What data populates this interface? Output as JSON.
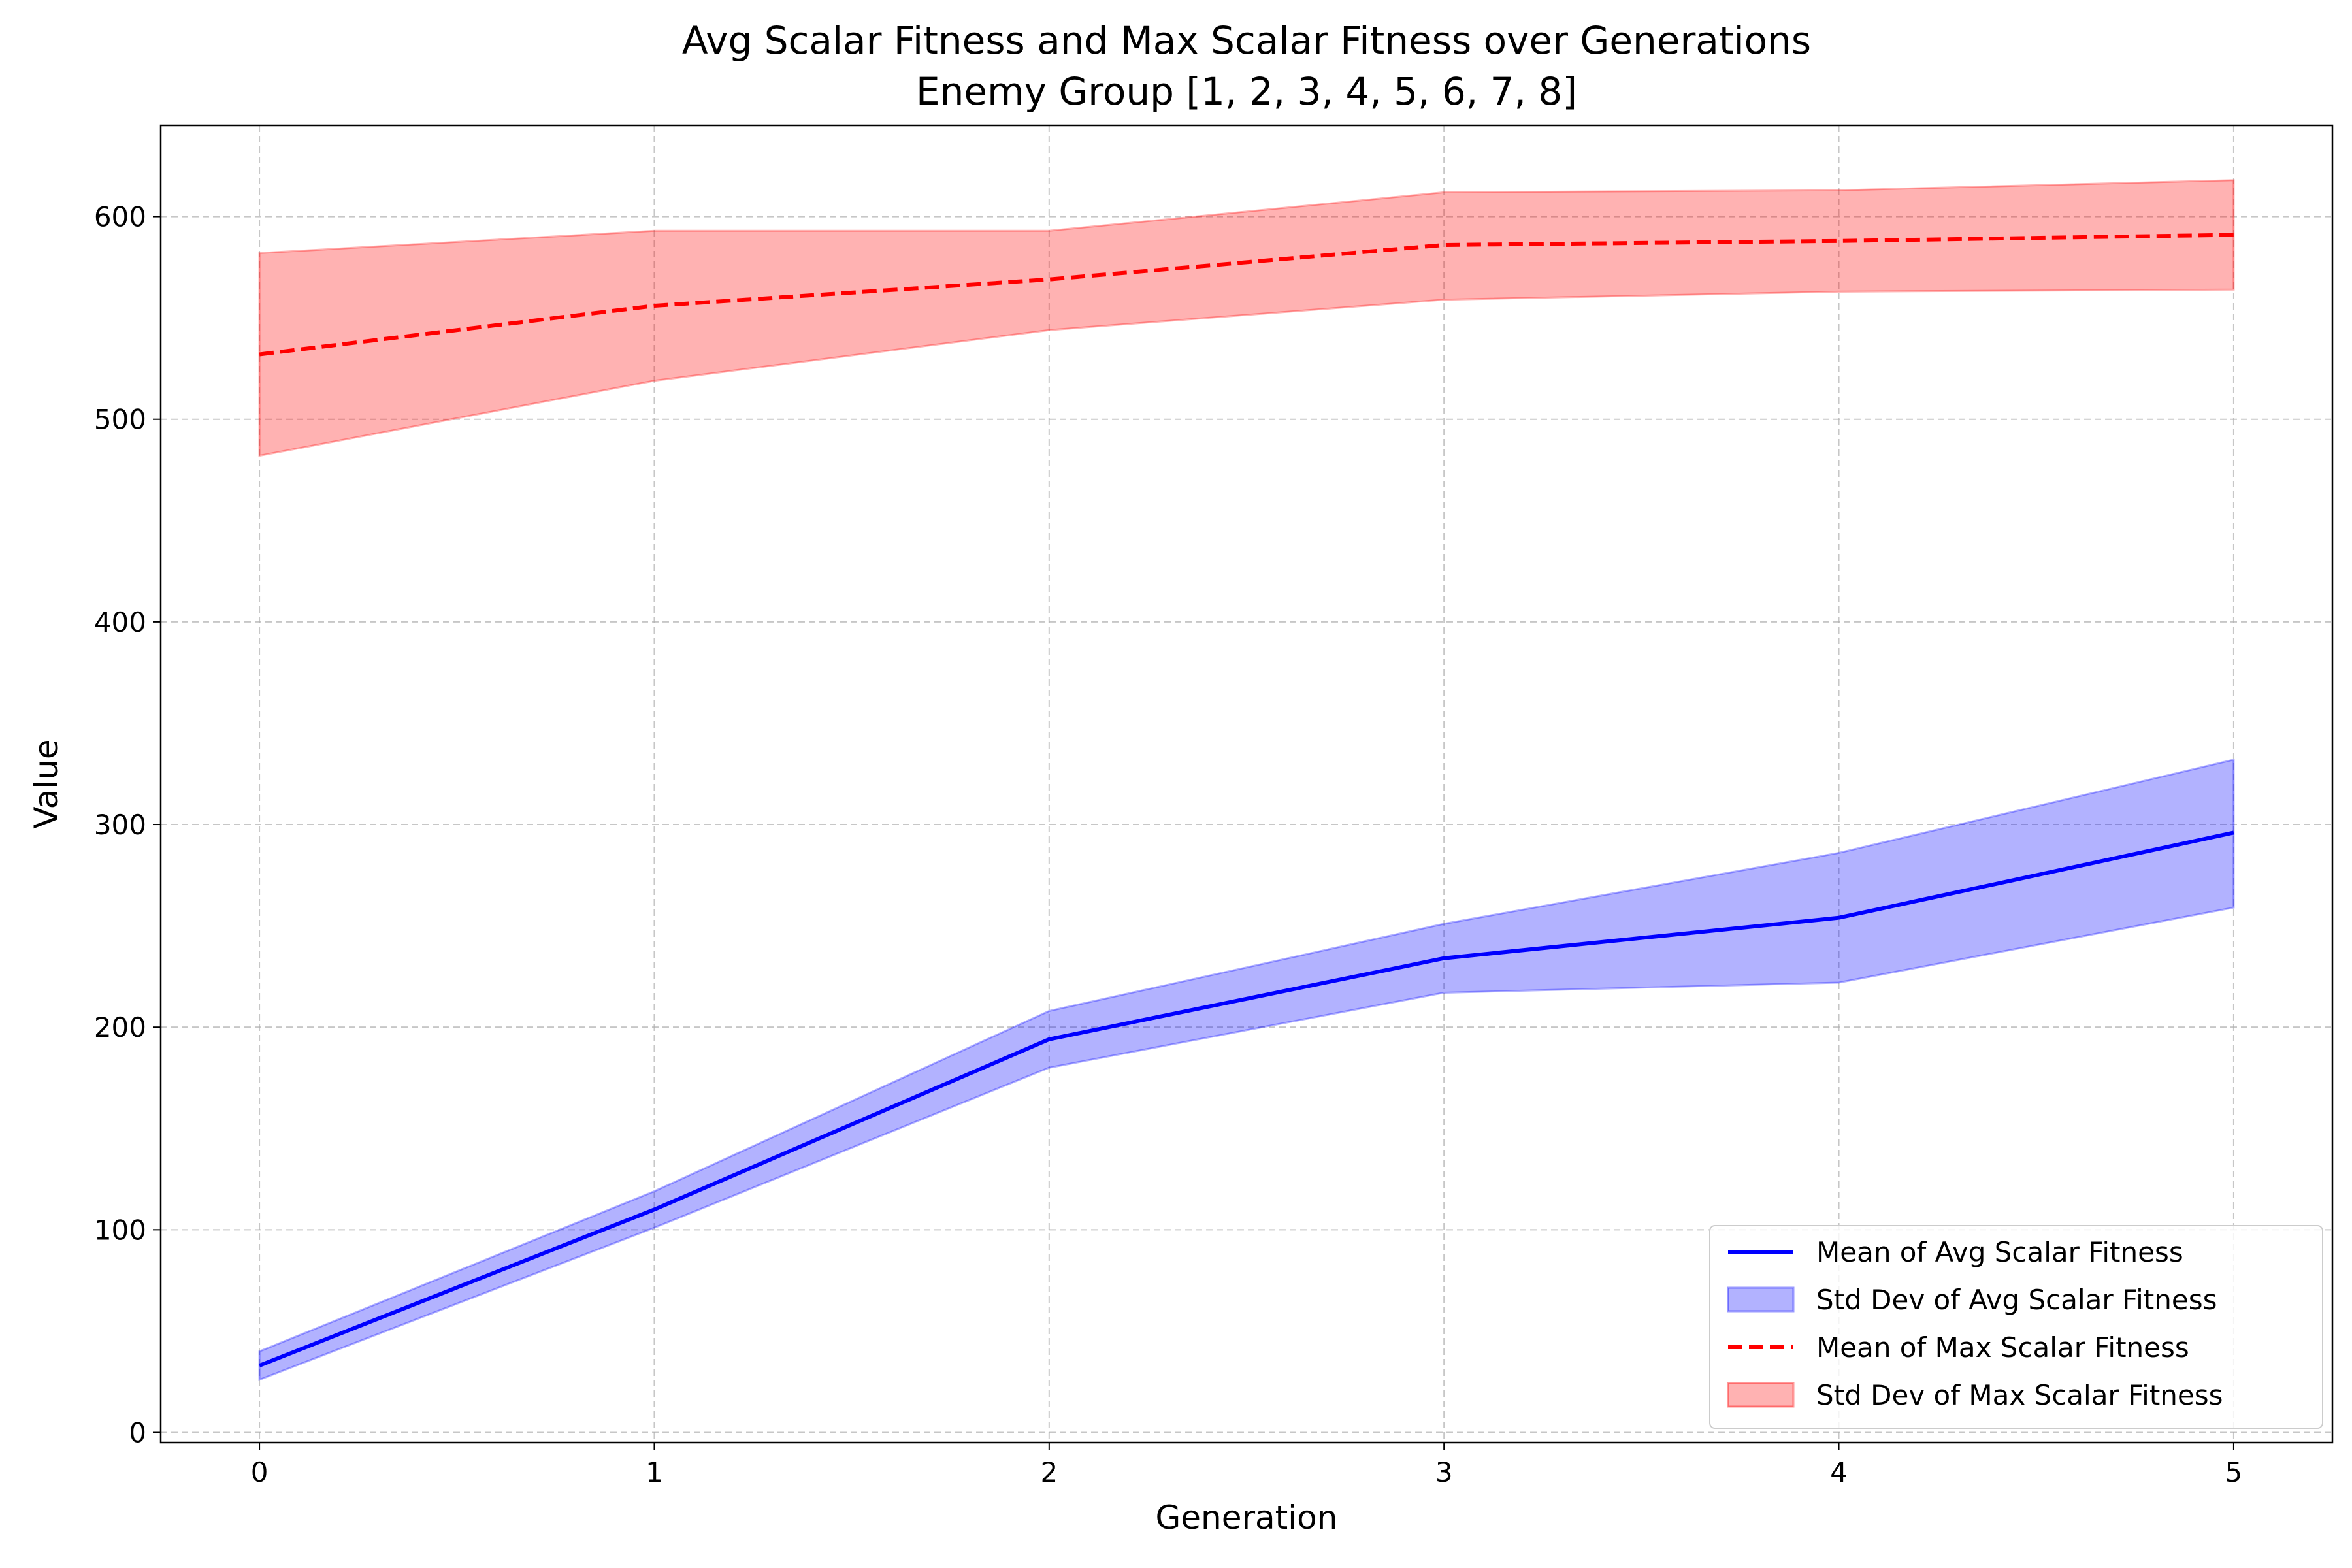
{
  "chart_data": {
    "type": "line",
    "title": "Avg Scalar Fitness and Max Scalar Fitness over Generations",
    "subtitle": "Enemy Group [1, 2, 3, 4, 5, 6, 7, 8]",
    "xlabel": "Generation",
    "ylabel": "Value",
    "x": [
      0,
      1,
      2,
      3,
      4,
      5
    ],
    "xlim": [
      -0.25,
      5.25
    ],
    "ylim": [
      -5,
      645
    ],
    "xticks": [
      0,
      1,
      2,
      3,
      4,
      5
    ],
    "yticks": [
      0,
      100,
      200,
      300,
      400,
      500,
      600
    ],
    "grid": true,
    "legend_position": "lower-right",
    "series": [
      {
        "name": "Mean of Avg Scalar Fitness",
        "kind": "line",
        "style": "solid",
        "color": "#0000ff",
        "values": [
          33,
          110,
          194,
          234,
          254,
          296
        ]
      },
      {
        "name": "Std Dev of Avg Scalar Fitness",
        "kind": "band",
        "color": "#0000ff",
        "lower": [
          26,
          101,
          180,
          217,
          222,
          259
        ],
        "upper": [
          40,
          119,
          208,
          251,
          286,
          332
        ]
      },
      {
        "name": "Mean of Max Scalar Fitness",
        "kind": "line",
        "style": "dashed",
        "color": "#ff0000",
        "values": [
          532,
          556,
          569,
          586,
          588,
          591
        ]
      },
      {
        "name": "Std Dev of Max Scalar Fitness",
        "kind": "band",
        "color": "#ff0000",
        "lower": [
          482,
          519,
          544,
          559,
          563,
          564
        ],
        "upper": [
          582,
          593,
          593,
          612,
          613,
          618
        ]
      }
    ]
  }
}
